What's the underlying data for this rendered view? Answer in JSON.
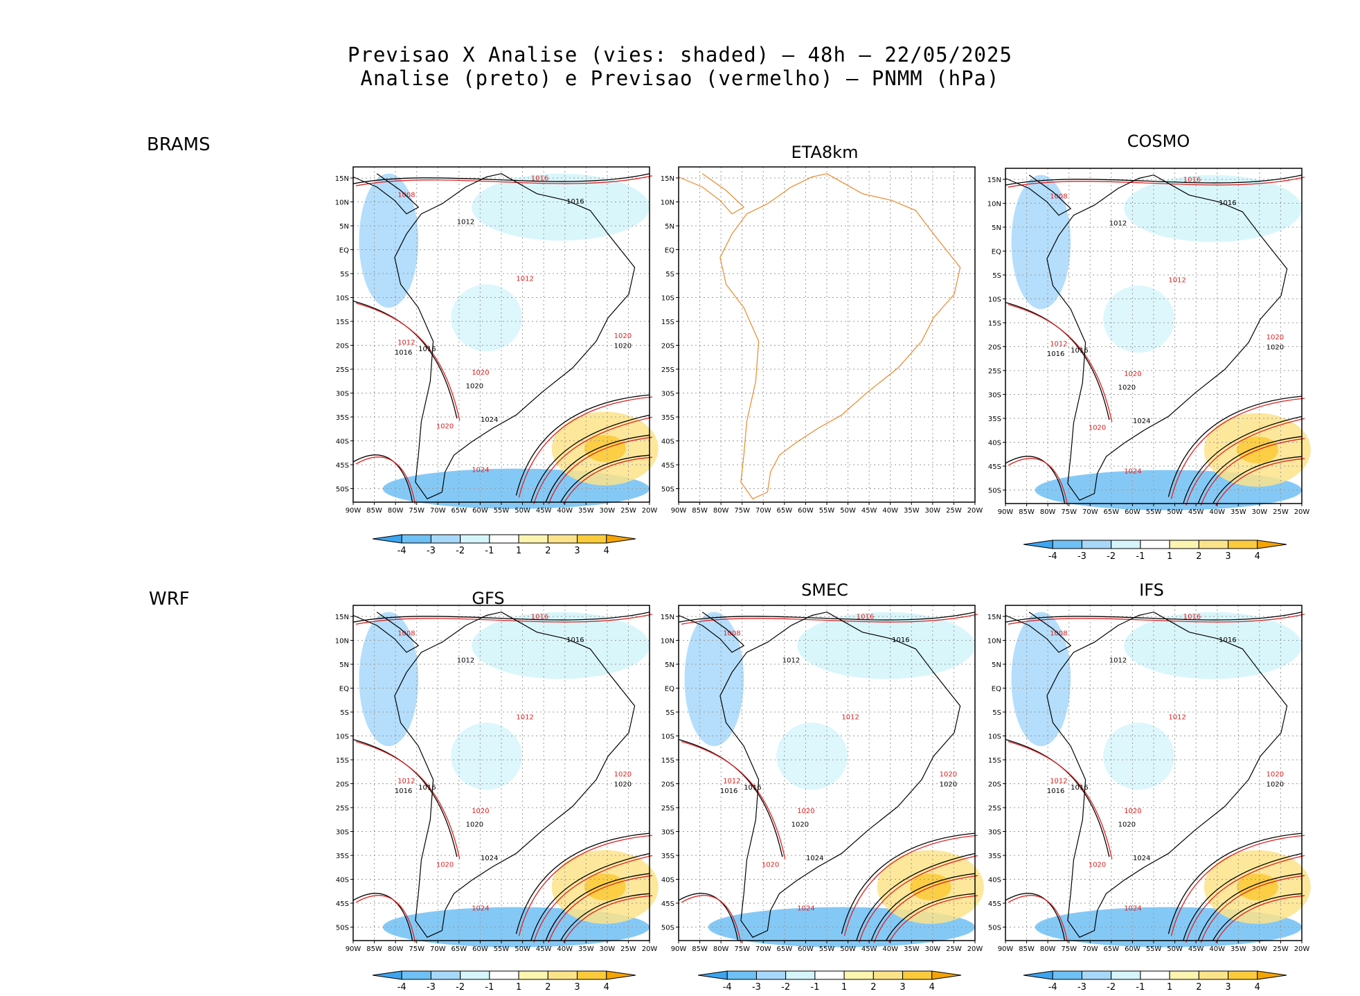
{
  "title": {
    "line1": "Previsao X Analise (vies: shaded) – 48h – 22/05/2025",
    "line2": "Analise (preto) e Previsao (vermelho) – PNMM (hPa)"
  },
  "row_labels": {
    "top": "BRAMS",
    "bottom": "WRF"
  },
  "panels": [
    {
      "title": "",
      "has_data": true,
      "colorbar": true
    },
    {
      "title": "ETA8km",
      "has_data": false,
      "colorbar": false
    },
    {
      "title": "COSMO",
      "has_data": true,
      "colorbar": true
    },
    {
      "title": "GFS",
      "has_data": true,
      "colorbar": true
    },
    {
      "title": "SMEC",
      "has_data": true,
      "colorbar": true
    },
    {
      "title": "IFS",
      "has_data": true,
      "colorbar": true
    }
  ],
  "axes": {
    "lat_labels": [
      "15N",
      "10N",
      "5N",
      "EQ",
      "5S",
      "10S",
      "15S",
      "20S",
      "25S",
      "30S",
      "35S",
      "40S",
      "45S",
      "50S"
    ],
    "lon_labels": [
      "90W",
      "85W",
      "80W",
      "75W",
      "70W",
      "65W",
      "60W",
      "55W",
      "50W",
      "45W",
      "40W",
      "35W",
      "30W",
      "25W",
      "20W"
    ]
  },
  "colorbar": {
    "labels": [
      "-4",
      "-3",
      "-2",
      "-1",
      "1",
      "2",
      "3",
      "4"
    ],
    "colors": [
      "#3da5f0",
      "#6ec0f5",
      "#a7d8fa",
      "#d5f5fb",
      "#ffffff",
      "#fbf5b0",
      "#fbe38a",
      "#fbcb3c",
      "#f5a400"
    ]
  },
  "isobar_labels": {
    "black": [
      "1016",
      "1012",
      "1016",
      "1020",
      "1024",
      "1016",
      "1020"
    ],
    "red": [
      "1016",
      "1008",
      "1012",
      "1012",
      "1020",
      "1020",
      "1024",
      "1020"
    ]
  },
  "colors": {
    "analysis": "#000000",
    "forecast": "#e02020",
    "map_border": "#e8892a"
  }
}
